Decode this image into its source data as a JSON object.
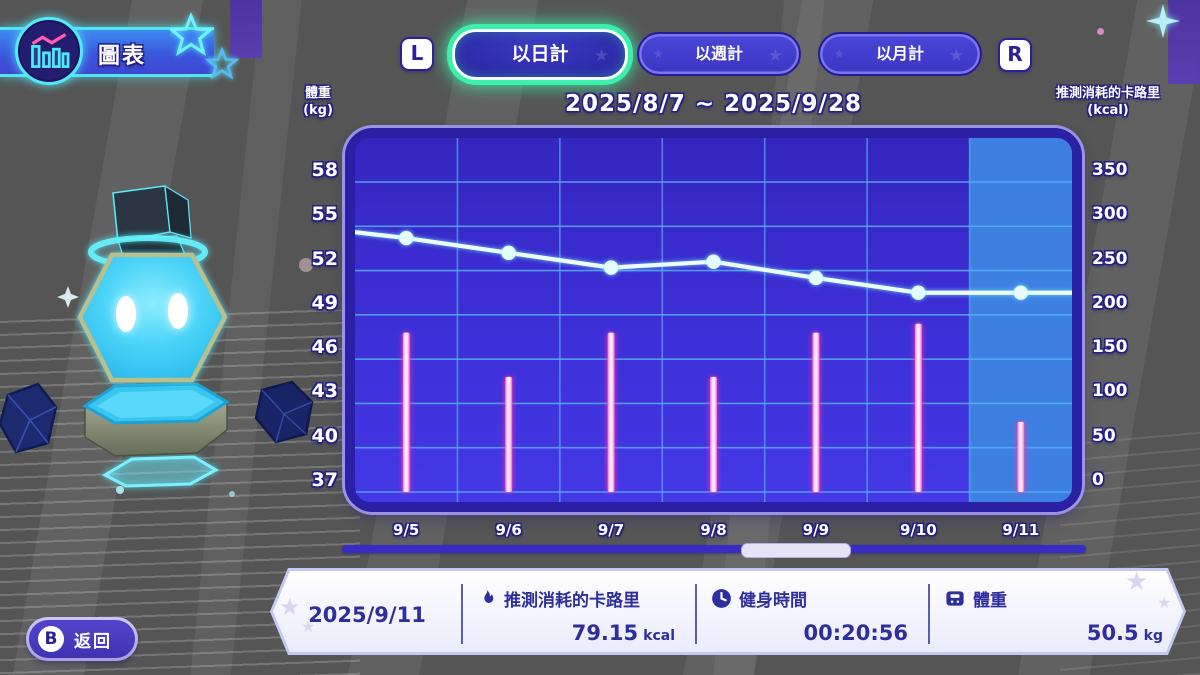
{
  "header": {
    "title": "圖表"
  },
  "shoulder_buttons": {
    "l": "L",
    "r": "R"
  },
  "tabs": [
    {
      "label": "以日計",
      "selected": true
    },
    {
      "label": "以週計",
      "selected": false
    },
    {
      "label": "以月計",
      "selected": false
    }
  ],
  "chart_data": {
    "type": "combo",
    "title": "2025/8/7 ~ 2025/9/28",
    "left_axis": {
      "label": "體重",
      "unit": "(kg)",
      "max": 58,
      "min": 37,
      "ticks": [
        58,
        55,
        52,
        49,
        46,
        43,
        40,
        37
      ]
    },
    "right_axis": {
      "label": "推測消耗的卡路里",
      "unit": "(kcal)",
      "max": 350,
      "min": 0,
      "ticks": [
        350,
        300,
        250,
        200,
        150,
        100,
        50,
        0
      ]
    },
    "categories": [
      "9/5",
      "9/6",
      "9/7",
      "9/8",
      "9/9",
      "9/10",
      "9/11"
    ],
    "series": [
      {
        "name": "體重",
        "type": "line",
        "unit": "kg",
        "color": "#ecfdff",
        "values": [
          54.2,
          53.2,
          52.2,
          52.6,
          51.5,
          50.5,
          50.5
        ],
        "edge_entry_value": 54.6
      },
      {
        "name": "推測消耗的卡路里",
        "type": "bar",
        "unit": "kcal",
        "color": "#ff5ec8",
        "values": [
          180,
          130,
          180,
          130,
          180,
          190,
          79.15
        ]
      }
    ],
    "selected_index": 6,
    "grid": true,
    "legend": "none"
  },
  "detail_panel": {
    "date": "2025/9/11",
    "calories": {
      "label": "推測消耗的卡路里",
      "value": "79.15",
      "unit": "kcal"
    },
    "workout_time": {
      "label": "健身時間",
      "value": "00:20:56"
    },
    "weight": {
      "label": "體重",
      "value": "50.5",
      "unit": "kg"
    }
  },
  "back_button": {
    "key": "B",
    "label": "返回"
  }
}
